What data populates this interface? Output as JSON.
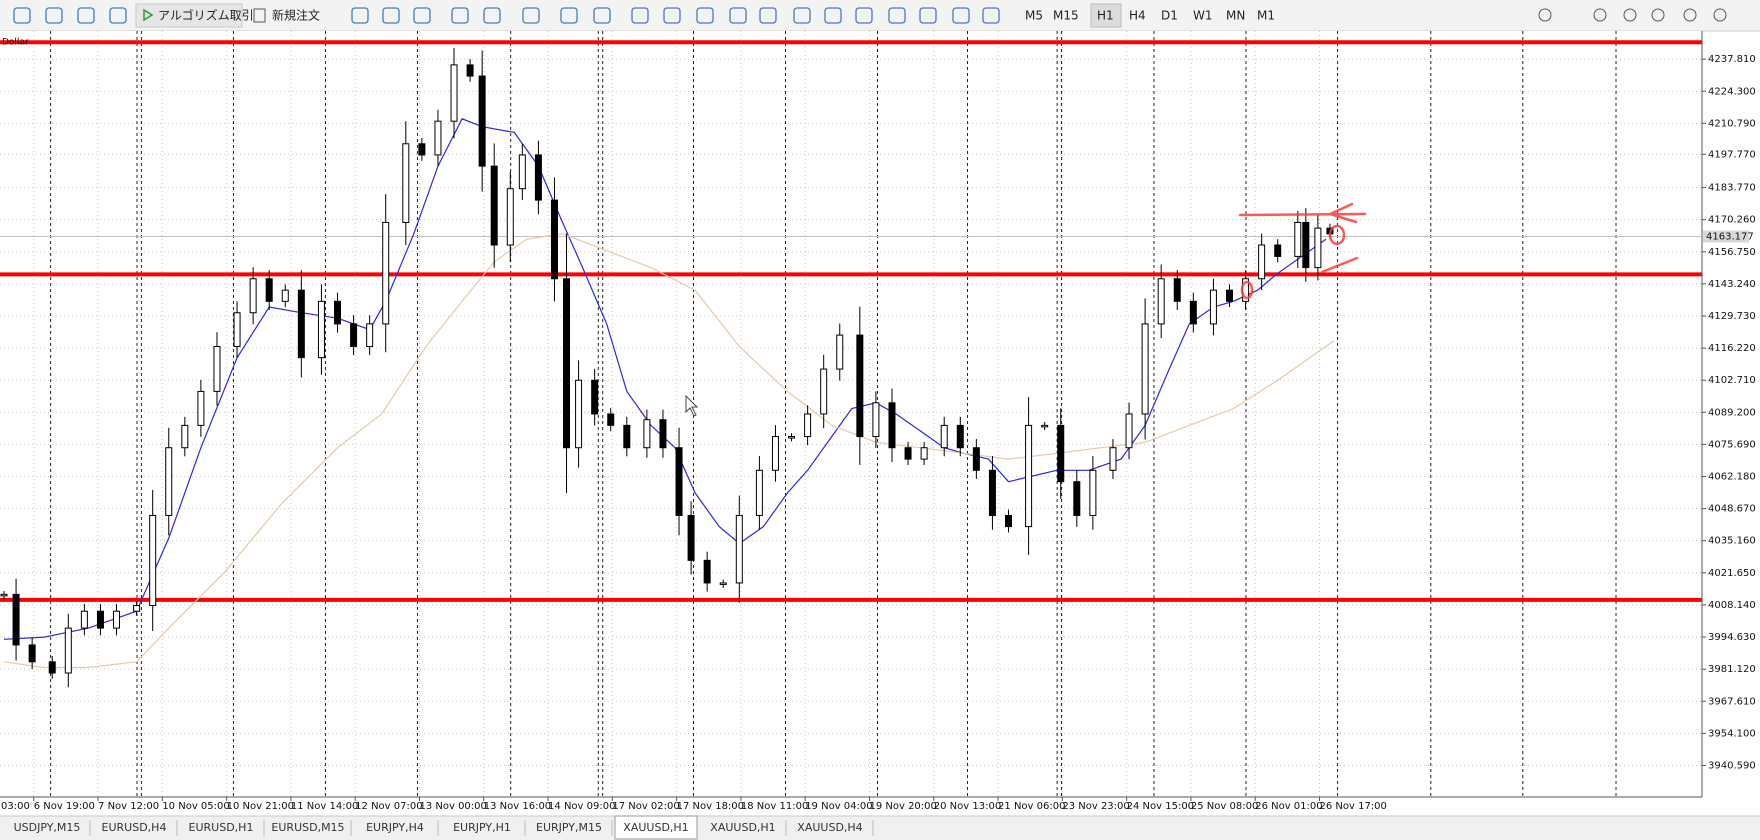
{
  "toolbar": {
    "algo_trading": "アルゴリズム取引",
    "new_order": "新規注文",
    "timeframes": [
      "M5",
      "M15",
      "H1",
      "H4",
      "D1",
      "W1",
      "MN",
      "M1"
    ],
    "active_timeframe": 2
  },
  "tabs": {
    "items": [
      "USDJPY,M15",
      "EURUSD,H4",
      "EURUSD,H1",
      "EURUSD,M15",
      "EURJPY,H4",
      "EURJPY,H1",
      "EURJPY,M15",
      "XAUUSD,H1",
      "XAUUSD,H1",
      "XAUUSD,H4"
    ],
    "active": 7
  },
  "chart_data": {
    "type": "candlestick",
    "symbol_label": "Dollar",
    "xlim": [
      0,
      423.6
    ],
    "ylim": [
      3927.32,
      4249.66
    ],
    "yticks": [
      {
        "value": 4237.81,
        "label": "4237.810"
      },
      {
        "value": 4224.3,
        "label": "4224.300"
      },
      {
        "value": 4210.79,
        "label": "4210.790"
      },
      {
        "value": 4197.77,
        "label": "4197.770"
      },
      {
        "value": 4183.77,
        "label": "4183.770"
      },
      {
        "value": 4170.26,
        "label": "4170.260"
      },
      {
        "value": 4156.75,
        "label": "4156.750"
      },
      {
        "value": 4143.24,
        "label": "4143.240"
      },
      {
        "value": 4129.73,
        "label": "4129.730"
      },
      {
        "value": 4116.22,
        "label": "4116.220"
      },
      {
        "value": 4102.71,
        "label": "4102.710"
      },
      {
        "value": 4089.2,
        "label": "4089.200"
      },
      {
        "value": 4075.69,
        "label": "4075.690"
      },
      {
        "value": 4062.18,
        "label": "4062.180"
      },
      {
        "value": 4048.67,
        "label": "4048.670"
      },
      {
        "value": 4035.16,
        "label": "4035.160"
      },
      {
        "value": 4021.65,
        "label": "4021.650"
      },
      {
        "value": 4008.14,
        "label": "4008.140"
      },
      {
        "value": 3994.63,
        "label": "3994.630"
      },
      {
        "value": 3981.12,
        "label": "3981.120"
      },
      {
        "value": 3967.61,
        "label": "3967.610"
      },
      {
        "value": 3954.1,
        "label": "3954.100"
      },
      {
        "value": 3940.59,
        "label": "3940.590"
      }
    ],
    "xticks": [
      {
        "value": -7.6,
        "label": "03:00"
      },
      {
        "value": 8.4,
        "label": "6 Nov 19:00"
      },
      {
        "value": 24.4,
        "label": "7 Nov 12:00"
      },
      {
        "value": 40.4,
        "label": "10 Nov 05:00"
      },
      {
        "value": 56.4,
        "label": "10 Nov 21:00"
      },
      {
        "value": 72.4,
        "label": "11 Nov 14:00"
      },
      {
        "value": 88.4,
        "label": "12 Nov 07:00"
      },
      {
        "value": 104.4,
        "label": "13 Nov 00:00"
      },
      {
        "value": 120.4,
        "label": "13 Nov 16:00"
      },
      {
        "value": 136.4,
        "label": "14 Nov 09:00"
      },
      {
        "value": 152.4,
        "label": "17 Nov 02:00"
      },
      {
        "value": 168.4,
        "label": "17 Nov 18:00"
      },
      {
        "value": 184.4,
        "label": "18 Nov 11:00"
      },
      {
        "value": 200.4,
        "label": "19 Nov 04:00"
      },
      {
        "value": 216.4,
        "label": "19 Nov 20:00"
      },
      {
        "value": 232.4,
        "label": "20 Nov 13:00"
      },
      {
        "value": 248.4,
        "label": "21 Nov 06:00"
      },
      {
        "value": 264.4,
        "label": "23 Nov 23:00"
      },
      {
        "value": 280.4,
        "label": "24 Nov 15:00"
      },
      {
        "value": 296.4,
        "label": "25 Nov 08:00"
      },
      {
        "value": 312.4,
        "label": "26 Nov 01:00"
      },
      {
        "value": 328.4,
        "label": "26 Nov 17:00"
      }
    ],
    "session_breaks": [
      12.6,
      34.1,
      35.2,
      58.1,
      81.0,
      103.9,
      127.1,
      148.9,
      150.0,
      172.6,
      195.5,
      218.4,
      240.8,
      263.1,
      264.2,
      287.2,
      310.1,
      332.9,
      356.1,
      379.0,
      402.2
    ],
    "grid": true,
    "x": [
      1,
      4,
      8,
      13,
      17,
      21,
      25,
      29,
      34,
      38,
      42,
      46,
      50,
      54,
      59,
      63,
      67,
      71,
      75,
      80,
      84,
      88,
      92,
      96,
      101,
      105,
      109,
      113,
      117,
      120,
      123,
      127,
      130,
      134,
      138,
      141,
      144,
      148,
      152,
      156,
      161,
      165,
      169,
      172,
      176,
      180,
      184,
      189,
      193,
      197,
      201,
      205,
      209,
      214,
      218,
      222,
      226,
      230,
      235,
      239,
      243,
      247,
      251,
      256,
      260,
      264,
      268,
      272,
      277,
      281,
      285,
      289,
      293,
      297,
      302,
      306,
      310,
      314,
      318,
      323,
      325,
      328,
      331
    ],
    "values": [
      4012.6,
      3991.3,
      3984.2,
      3979.5,
      3998.4,
      4005.5,
      3998.4,
      4005.5,
      4007.9,
      4045.8,
      4074.3,
      4083.7,
      4098.0,
      4116.9,
      4131.1,
      4145.4,
      4135.9,
      4140.6,
      4112.2,
      4135.9,
      4126.4,
      4116.9,
      4126.4,
      4169.1,
      4202.2,
      4197.5,
      4211.7,
      4235.4,
      4230.7,
      4192.8,
      4159.6,
      4183.3,
      4197.5,
      4178.5,
      4145.4,
      4074.3,
      4102.7,
      4088.5,
      4083.7,
      4074.3,
      4086.1,
      4074.3,
      4045.8,
      4026.9,
      4017.4,
      4017.4,
      4045.8,
      4064.8,
      4079.0,
      4079.0,
      4088.5,
      4107.4,
      4121.7,
      4079.0,
      4093.2,
      4074.3,
      4069.5,
      4074.3,
      4083.7,
      4074.3,
      4064.8,
      4045.8,
      4041.1,
      4083.7,
      4083.7,
      4060.0,
      4045.8,
      4064.8,
      4074.3,
      4088.5,
      4126.4,
      4145.4,
      4135.9,
      4126.4,
      4140.6,
      4135.9,
      4145.4,
      4159.6,
      4154.8,
      4169.1,
      4150.1,
      4166.7,
      4164.3
    ],
    "lines": [
      {
        "color": "#2929e0",
        "x": [
          1,
          11,
          22,
          34,
          42,
          50,
          59,
          67,
          75,
          84,
          92,
          96,
          103,
          109,
          115,
          120,
          128,
          134,
          140,
          145,
          151,
          156,
          162,
          168,
          173,
          179,
          184,
          190,
          196,
          201,
          207,
          212,
          218,
          223,
          229,
          235,
          240,
          246,
          251,
          257,
          263,
          271,
          279,
          285,
          291,
          296,
          302,
          307,
          313,
          318,
          324,
          330
        ],
        "values": [
          3993.7,
          3994.6,
          3998.4,
          4005.5,
          4036.3,
          4074.3,
          4112.2,
          4133.5,
          4131.1,
          4128.8,
          4124.0,
          4135.9,
          4164.3,
          4192.8,
          4212.7,
          4209.4,
          4207.0,
          4192.8,
          4169.1,
          4150.1,
          4126.4,
          4098.0,
          4083.7,
          4074.3,
          4055.3,
          4041.1,
          4034.0,
          4041.1,
          4055.3,
          4064.8,
          4079.0,
          4090.8,
          4093.2,
          4088.5,
          4081.4,
          4074.3,
          4071.9,
          4069.5,
          4060.0,
          4062.4,
          4064.8,
          4064.8,
          4069.5,
          4083.7,
          4107.4,
          4126.4,
          4133.5,
          4135.9,
          4140.6,
          4147.7,
          4154.8,
          4162.0
        ]
      },
      {
        "color": "#e8c9a8",
        "x": [
          1,
          11,
          22,
          34,
          42,
          56,
          70,
          84,
          95,
          106,
          115,
          123,
          131,
          140,
          151,
          162,
          173,
          184,
          196,
          207,
          218,
          229,
          240,
          251,
          263,
          274,
          285,
          296,
          307,
          318,
          332
        ],
        "values": [
          3984.2,
          3981.8,
          3981.8,
          3984.2,
          3998.4,
          4022.1,
          4050.6,
          4074.3,
          4088.5,
          4116.9,
          4135.9,
          4152.5,
          4162.0,
          4164.3,
          4157.2,
          4150.1,
          4140.6,
          4116.9,
          4098.0,
          4083.7,
          4076.6,
          4074.3,
          4071.9,
          4069.5,
          4071.9,
          4074.3,
          4076.6,
          4083.7,
          4090.8,
          4102.7,
          4119.3
        ]
      }
    ],
    "horizontal_lines": {
      "color": "#ff0000",
      "values": [
        4244.92,
        4147.27,
        4010.28
      ]
    },
    "current_price": {
      "value": 4163.177,
      "label": "4163.177"
    }
  }
}
